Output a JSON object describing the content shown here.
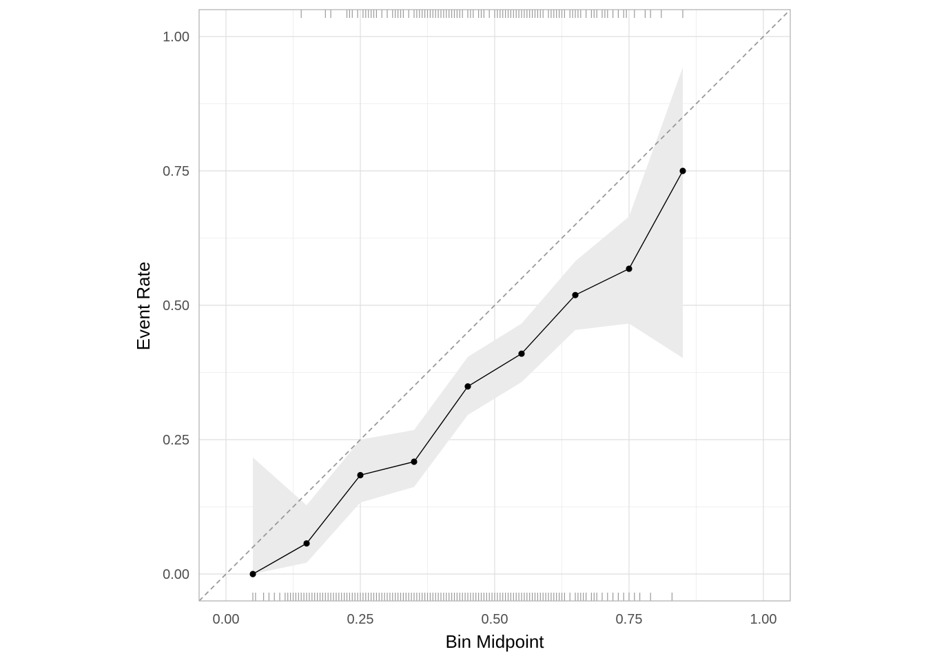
{
  "chart_data": {
    "type": "line",
    "title": "",
    "xlabel": "Bin Midpoint",
    "ylabel": "Event Rate",
    "xlim": [
      -0.05,
      1.05
    ],
    "ylim": [
      -0.05,
      1.05
    ],
    "grid": true,
    "x_tick_labels": [
      "0.00",
      "0.25",
      "0.50",
      "0.75",
      "1.00"
    ],
    "y_tick_labels": [
      "0.00",
      "0.25",
      "0.50",
      "0.75",
      "1.00"
    ],
    "x_ticks": [
      0,
      0.25,
      0.5,
      0.75,
      1.0
    ],
    "y_ticks": [
      0,
      0.25,
      0.5,
      0.75,
      1.0
    ],
    "reference_line": {
      "type": "diagonal",
      "style": "dashed",
      "color": "#999999"
    },
    "series": [
      {
        "x": [
          0.05,
          0.15,
          0.25,
          0.35,
          0.45,
          0.55,
          0.65,
          0.75,
          0.85
        ],
        "values": [
          0.0,
          0.057,
          0.184,
          0.209,
          0.349,
          0.41,
          0.519,
          0.568,
          0.75
        ],
        "lower": [
          0.0,
          0.021,
          0.133,
          0.162,
          0.296,
          0.357,
          0.454,
          0.466,
          0.402
        ],
        "upper": [
          0.217,
          0.128,
          0.25,
          0.268,
          0.404,
          0.466,
          0.582,
          0.665,
          0.943
        ],
        "color": "#000000"
      }
    ],
    "ribbon_color": "#ebebeb",
    "rug": {
      "color": "#999999",
      "top": [
        0.14,
        0.185,
        0.195,
        0.225,
        0.23,
        0.235,
        0.245,
        0.255,
        0.26,
        0.265,
        0.27,
        0.275,
        0.28,
        0.29,
        0.3,
        0.31,
        0.315,
        0.32,
        0.325,
        0.33,
        0.34,
        0.35,
        0.355,
        0.36,
        0.365,
        0.37,
        0.375,
        0.38,
        0.385,
        0.39,
        0.395,
        0.4,
        0.405,
        0.41,
        0.415,
        0.42,
        0.425,
        0.43,
        0.435,
        0.44,
        0.45,
        0.455,
        0.46,
        0.47,
        0.475,
        0.48,
        0.49,
        0.5,
        0.505,
        0.51,
        0.515,
        0.52,
        0.525,
        0.53,
        0.535,
        0.54,
        0.545,
        0.55,
        0.555,
        0.56,
        0.565,
        0.57,
        0.575,
        0.58,
        0.585,
        0.59,
        0.6,
        0.605,
        0.61,
        0.615,
        0.62,
        0.625,
        0.63,
        0.64,
        0.645,
        0.65,
        0.655,
        0.66,
        0.67,
        0.68,
        0.685,
        0.69,
        0.7,
        0.705,
        0.71,
        0.72,
        0.73,
        0.74,
        0.745,
        0.76,
        0.78,
        0.79,
        0.81,
        0.85
      ],
      "bottom": [
        0.05,
        0.055,
        0.07,
        0.08,
        0.09,
        0.1,
        0.11,
        0.115,
        0.12,
        0.125,
        0.13,
        0.135,
        0.14,
        0.145,
        0.15,
        0.155,
        0.16,
        0.165,
        0.17,
        0.175,
        0.18,
        0.185,
        0.19,
        0.195,
        0.2,
        0.205,
        0.21,
        0.215,
        0.22,
        0.225,
        0.23,
        0.235,
        0.24,
        0.245,
        0.25,
        0.255,
        0.26,
        0.265,
        0.27,
        0.275,
        0.28,
        0.285,
        0.29,
        0.295,
        0.3,
        0.305,
        0.31,
        0.315,
        0.32,
        0.325,
        0.33,
        0.335,
        0.34,
        0.345,
        0.35,
        0.355,
        0.36,
        0.365,
        0.37,
        0.375,
        0.38,
        0.385,
        0.39,
        0.395,
        0.4,
        0.405,
        0.41,
        0.415,
        0.42,
        0.425,
        0.43,
        0.435,
        0.44,
        0.445,
        0.45,
        0.455,
        0.46,
        0.465,
        0.47,
        0.475,
        0.48,
        0.485,
        0.49,
        0.495,
        0.5,
        0.505,
        0.51,
        0.515,
        0.52,
        0.525,
        0.53,
        0.535,
        0.54,
        0.545,
        0.55,
        0.555,
        0.56,
        0.565,
        0.57,
        0.575,
        0.58,
        0.585,
        0.59,
        0.595,
        0.6,
        0.605,
        0.61,
        0.615,
        0.62,
        0.625,
        0.63,
        0.64,
        0.65,
        0.655,
        0.66,
        0.665,
        0.67,
        0.68,
        0.685,
        0.69,
        0.7,
        0.71,
        0.72,
        0.73,
        0.74,
        0.75,
        0.76,
        0.77,
        0.79,
        0.83
      ]
    }
  }
}
